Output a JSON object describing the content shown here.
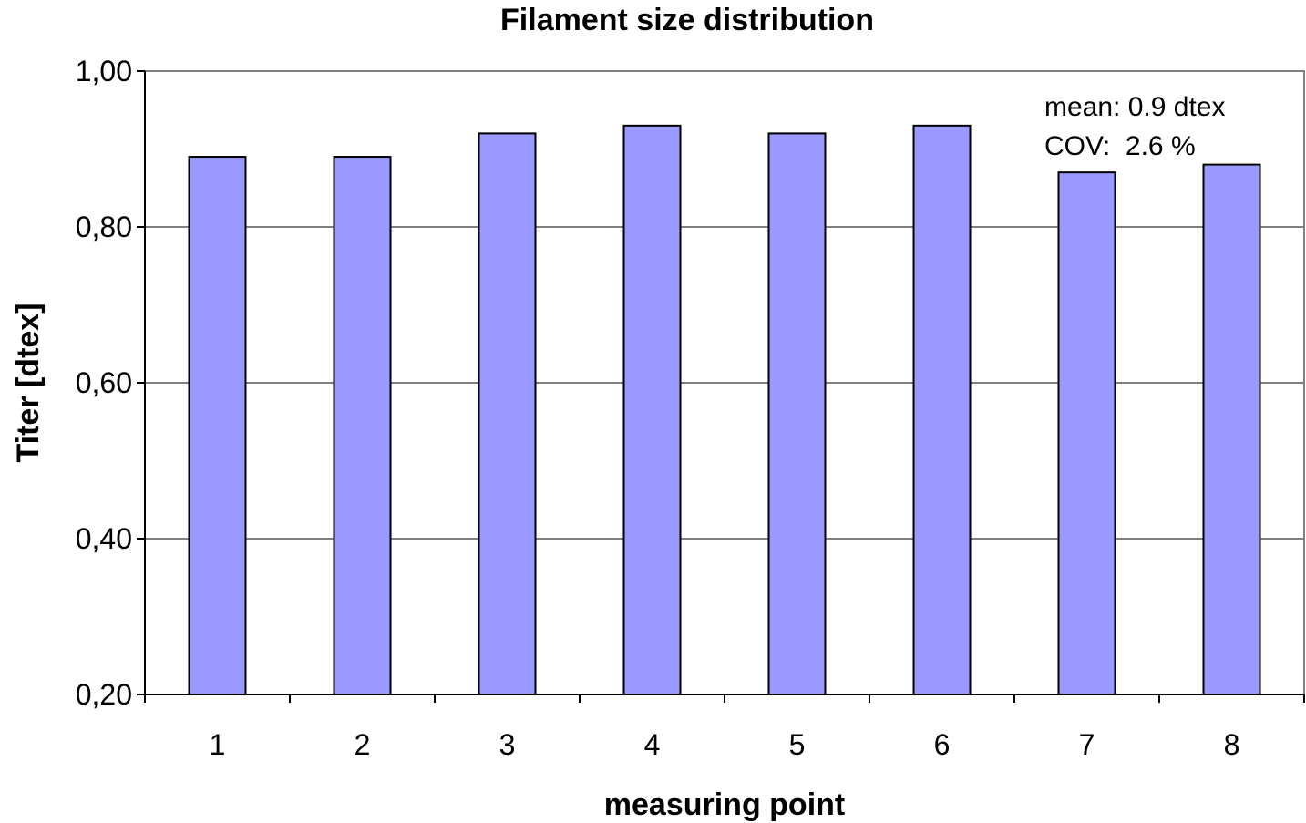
{
  "chart_data": {
    "type": "bar",
    "title": "Filament size distribution",
    "xlabel": "measuring point",
    "ylabel": "Titer [dtex]",
    "categories": [
      "1",
      "2",
      "3",
      "4",
      "5",
      "6",
      "7",
      "8"
    ],
    "values": [
      0.89,
      0.89,
      0.92,
      0.93,
      0.92,
      0.93,
      0.87,
      0.88
    ],
    "ylim": [
      0.2,
      1.0
    ],
    "yticks": [
      "0,20",
      "0,40",
      "0,60",
      "0,80",
      "1,00"
    ],
    "grid": true,
    "annotations": [
      "mean: 0.9 dtex",
      "COV:  2.6 %"
    ],
    "colors": {
      "bar_fill": "#9999ff",
      "bar_stroke": "#000000",
      "grid": "#000000"
    }
  }
}
